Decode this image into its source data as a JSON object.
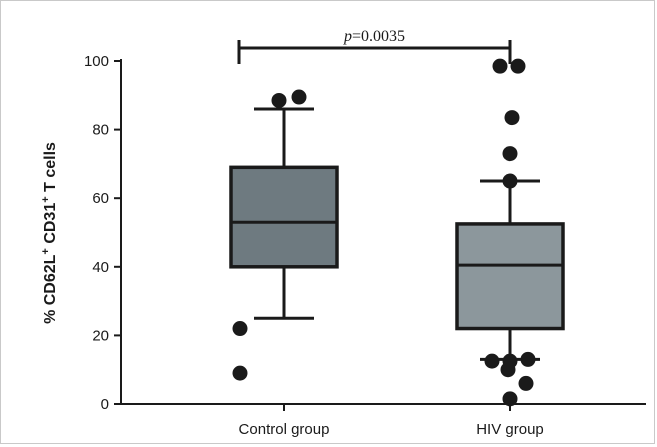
{
  "chart_data": {
    "type": "boxplot",
    "ylabel": {
      "prefix": "% CD62L",
      "sup1": "+",
      "middle": " CD31",
      "sup2": "+",
      "suffix": " T cells"
    },
    "ylim": [
      0,
      100
    ],
    "yticks": [
      "0",
      "20",
      "40",
      "60",
      "80",
      "100"
    ],
    "categories": [
      "Control group",
      "HIV group"
    ],
    "boxes": [
      {
        "name": "Control group",
        "whisker_low": 25,
        "q1": 40,
        "median": 53,
        "q3": 69,
        "whisker_high": 86,
        "outliers": [
          88.5,
          89.5,
          22,
          9
        ],
        "color": "#6e7a80"
      },
      {
        "name": "HIV group",
        "whisker_low": 13,
        "q1": 22,
        "median": 40.5,
        "q3": 52.5,
        "whisker_high": 65,
        "outliers": [
          98.5,
          98.5,
          83.5,
          73,
          65,
          12.5,
          12.5,
          13,
          10,
          6,
          1.5
        ],
        "color": "#8c979c"
      }
    ],
    "annotation": {
      "p_symbol": "p",
      "p_text": "=0.0035",
      "y": 100
    },
    "grid": false
  }
}
